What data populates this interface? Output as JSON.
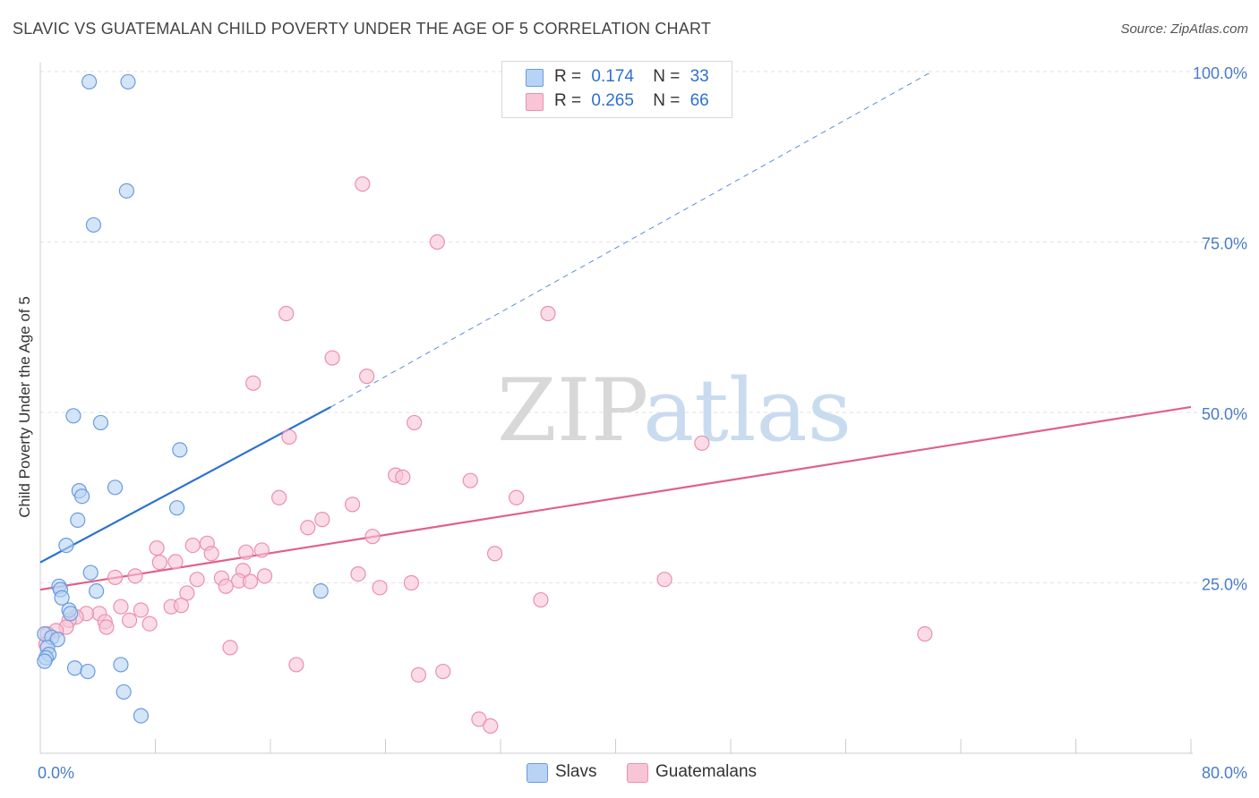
{
  "title": "SLAVIC VS GUATEMALAN CHILD POVERTY UNDER THE AGE OF 5 CORRELATION CHART",
  "source": "Source: ZipAtlas.com",
  "watermark": {
    "zip": "ZIP",
    "atlas": "atlas"
  },
  "colors": {
    "slavs_fill": "#b8d3f4",
    "slavs_stroke": "#6a9be0",
    "slavs_line": "#2f72cf",
    "guat_fill": "#f8c5d6",
    "guat_stroke": "#ec8fae",
    "guat_line": "#e0608c",
    "grid": "#e2e2e2",
    "axis_text": "#4a7cc9"
  },
  "legend": {
    "rows": [
      {
        "r_label": "R =",
        "r_value": "0.174",
        "n_label": "N =",
        "n_value": "33"
      },
      {
        "r_label": "R =",
        "r_value": "0.265",
        "n_label": "N =",
        "n_value": "66"
      }
    ]
  },
  "bottom_legend": {
    "slavs": "Slavs",
    "guatemalans": "Guatemalans"
  },
  "chart_data": {
    "type": "scatter",
    "title": "SLAVIC VS GUATEMALAN CHILD POVERTY UNDER THE AGE OF 5 CORRELATION CHART",
    "xlabel": "",
    "ylabel": "Child Poverty Under the Age of 5",
    "xlim": [
      0,
      80
    ],
    "ylim": [
      0,
      102
    ],
    "x_tick_labels": [
      "0.0%",
      "80.0%"
    ],
    "y_ticks": [
      25,
      50,
      75,
      100
    ],
    "y_tick_labels": [
      "25.0%",
      "50.0%",
      "75.0%",
      "100.0%"
    ],
    "series": [
      {
        "name": "Slavs",
        "R": 0.174,
        "N": 33,
        "points": [
          [
            3.4,
            98.5
          ],
          [
            6.1,
            98.5
          ],
          [
            6.0,
            82.5
          ],
          [
            3.7,
            77.5
          ],
          [
            2.3,
            49.5
          ],
          [
            4.2,
            48.5
          ],
          [
            9.7,
            44.5
          ],
          [
            2.7,
            38.5
          ],
          [
            2.9,
            37.7
          ],
          [
            5.2,
            39.0
          ],
          [
            9.5,
            36.0
          ],
          [
            2.6,
            34.2
          ],
          [
            1.8,
            30.5
          ],
          [
            3.5,
            26.5
          ],
          [
            1.3,
            24.5
          ],
          [
            1.4,
            24.0
          ],
          [
            3.9,
            23.8
          ],
          [
            1.5,
            22.8
          ],
          [
            2.0,
            21.0
          ],
          [
            2.1,
            20.5
          ],
          [
            19.5,
            23.8
          ],
          [
            0.3,
            17.5
          ],
          [
            0.8,
            17.0
          ],
          [
            1.2,
            16.7
          ],
          [
            0.5,
            15.5
          ],
          [
            0.6,
            14.5
          ],
          [
            0.4,
            14.0
          ],
          [
            0.3,
            13.5
          ],
          [
            2.4,
            12.5
          ],
          [
            3.3,
            12.0
          ],
          [
            5.6,
            13.0
          ],
          [
            5.8,
            9.0
          ],
          [
            7.0,
            5.5
          ]
        ],
        "trend": {
          "x1": 0,
          "y1": 28.0,
          "x2": 20.2,
          "y2": 50.8,
          "dashed_to_x": 62.0,
          "dashed_to_y": 100.0
        }
      },
      {
        "name": "Guatemalans",
        "R": 0.265,
        "N": 66,
        "points": [
          [
            22.4,
            83.5
          ],
          [
            27.6,
            75.0
          ],
          [
            17.1,
            64.5
          ],
          [
            35.3,
            64.5
          ],
          [
            20.3,
            58.0
          ],
          [
            22.7,
            55.3
          ],
          [
            14.8,
            54.3
          ],
          [
            26.0,
            48.5
          ],
          [
            17.3,
            46.4
          ],
          [
            46.0,
            45.5
          ],
          [
            24.7,
            40.8
          ],
          [
            25.2,
            40.5
          ],
          [
            29.9,
            40.0
          ],
          [
            16.6,
            37.5
          ],
          [
            21.7,
            36.5
          ],
          [
            33.1,
            37.5
          ],
          [
            19.6,
            34.3
          ],
          [
            18.6,
            33.1
          ],
          [
            23.1,
            31.8
          ],
          [
            8.1,
            30.1
          ],
          [
            10.6,
            30.5
          ],
          [
            11.6,
            30.8
          ],
          [
            15.4,
            29.8
          ],
          [
            14.3,
            29.5
          ],
          [
            11.9,
            29.3
          ],
          [
            31.6,
            29.3
          ],
          [
            9.4,
            28.1
          ],
          [
            8.3,
            28.0
          ],
          [
            14.1,
            26.8
          ],
          [
            22.1,
            26.3
          ],
          [
            5.2,
            25.8
          ],
          [
            6.6,
            26.0
          ],
          [
            10.9,
            25.5
          ],
          [
            12.6,
            25.7
          ],
          [
            13.8,
            25.3
          ],
          [
            14.6,
            25.2
          ],
          [
            15.6,
            26.0
          ],
          [
            43.4,
            25.5
          ],
          [
            23.6,
            24.3
          ],
          [
            25.8,
            25.0
          ],
          [
            12.9,
            24.5
          ],
          [
            10.2,
            23.5
          ],
          [
            34.8,
            22.5
          ],
          [
            5.6,
            21.5
          ],
          [
            7.0,
            21.0
          ],
          [
            9.1,
            21.5
          ],
          [
            9.8,
            21.7
          ],
          [
            4.1,
            20.5
          ],
          [
            3.2,
            20.5
          ],
          [
            2.5,
            20.0
          ],
          [
            2.0,
            19.5
          ],
          [
            6.2,
            19.5
          ],
          [
            4.5,
            19.3
          ],
          [
            7.6,
            19.0
          ],
          [
            4.6,
            18.5
          ],
          [
            1.8,
            18.5
          ],
          [
            1.1,
            18.0
          ],
          [
            0.5,
            17.5
          ],
          [
            0.4,
            16.0
          ],
          [
            61.5,
            17.5
          ],
          [
            13.2,
            15.5
          ],
          [
            17.8,
            13.0
          ],
          [
            26.3,
            11.5
          ],
          [
            28.0,
            12.0
          ],
          [
            30.5,
            5.0
          ],
          [
            31.3,
            4.0
          ]
        ],
        "trend": {
          "x1": 0,
          "y1": 24.0,
          "x2": 80,
          "y2": 50.8
        }
      }
    ]
  }
}
